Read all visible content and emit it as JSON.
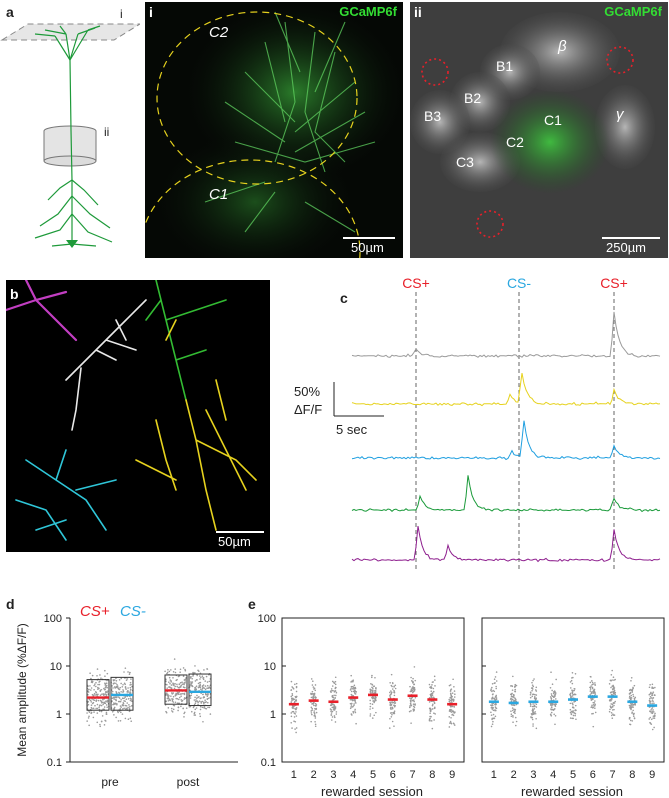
{
  "figure": {
    "panel_a": {
      "letter": "a",
      "plane_i": "i",
      "plane_ii": "ii"
    },
    "panel_a_i": {
      "label": "i",
      "indicator": "GCaMP6f",
      "regions": [
        "C2",
        "C1"
      ],
      "scale_bar": "50µm"
    },
    "panel_a_ii": {
      "label": "ii",
      "indicator": "GCaMP6f",
      "regions": [
        "β",
        "B1",
        "B2",
        "B3",
        "C1",
        "C2",
        "C3",
        "γ"
      ],
      "scale_bar": "250µm"
    },
    "panel_b": {
      "letter": "b",
      "scale_bar": "50µm",
      "colors": [
        "#c23ec2",
        "#ffffff",
        "#33bb33",
        "#e6d21e",
        "#2fc6d8"
      ]
    },
    "panel_c": {
      "letter": "c",
      "events": [
        "CS+",
        "CS-",
        "CS+"
      ],
      "event_colors": [
        "#e8202a",
        "#2aa7e0",
        "#e8202a"
      ],
      "scale_y": "50%",
      "scale_y_unit": "ΔF/F",
      "scale_x": "5 sec",
      "trace_colors": [
        "#9a9a9a",
        "#e6d21e",
        "#1f9fe0",
        "#1a9a3a",
        "#8e1f8e"
      ]
    },
    "panel_d": {
      "letter": "d"
    },
    "panel_e": {
      "letter": "e"
    }
  },
  "chart_data": [
    {
      "type": "scatter",
      "panel": "d",
      "ylabel": "Mean amplitude (%ΔF/F)",
      "yscale": "log",
      "ylim": [
        0.1,
        100
      ],
      "yticks": [
        "0.1",
        "1",
        "10",
        "100"
      ],
      "categories": [
        "pre",
        "post"
      ],
      "legend": [
        "CS+",
        "CS-"
      ],
      "legend_colors": [
        "#e8202a",
        "#2aa7e0"
      ],
      "series": [
        {
          "name": "CS+",
          "color": "#e8202a",
          "median": [
            2.2,
            3.1
          ],
          "q1": [
            1.2,
            1.6
          ],
          "q3": [
            5.2,
            6.5
          ]
        },
        {
          "name": "CS-",
          "color": "#2aa7e0",
          "median": [
            2.5,
            2.9
          ],
          "q1": [
            1.2,
            1.5
          ],
          "q3": [
            5.8,
            6.8
          ]
        }
      ]
    },
    {
      "type": "scatter",
      "panel": "e-left",
      "xlabel": "rewarded session",
      "yscale": "log",
      "ylim": [
        0.1,
        100
      ],
      "yticks": [
        "0.1",
        "1",
        "10",
        "100"
      ],
      "x": [
        "1",
        "2",
        "3",
        "4",
        "5",
        "6",
        "7",
        "8",
        "9"
      ],
      "series": [
        {
          "name": "CS+",
          "color": "#e8202a",
          "median": [
            1.6,
            1.9,
            1.8,
            2.2,
            2.5,
            2.0,
            2.4,
            2.0,
            1.6
          ]
        }
      ]
    },
    {
      "type": "scatter",
      "panel": "e-right",
      "xlabel": "rewarded session",
      "yscale": "log",
      "ylim": [
        0.1,
        100
      ],
      "x": [
        "1",
        "2",
        "3",
        "4",
        "5",
        "6",
        "7",
        "8",
        "9"
      ],
      "series": [
        {
          "name": "CS-",
          "color": "#2aa7e0",
          "median": [
            1.8,
            1.7,
            1.8,
            1.8,
            2.0,
            2.3,
            2.3,
            1.8,
            1.5
          ]
        }
      ]
    }
  ]
}
